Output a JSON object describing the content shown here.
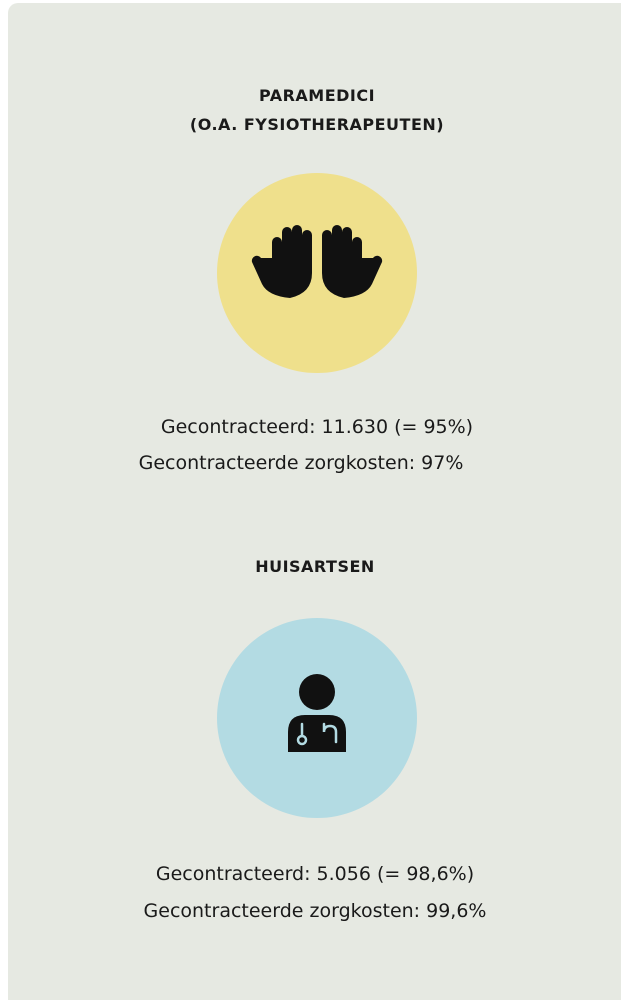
{
  "sections": [
    {
      "title": [
        "PARAMEDICI",
        "(O.A. FYSIOTHERAPEUTEN)"
      ],
      "lines": [
        "Gecontracteerd: 11.630 (= 95%)",
        "Gecontracteerde zorgkosten: 97%"
      ]
    },
    {
      "title": [
        "HUISARTSEN"
      ],
      "lines": [
        "Gecontracteerd: 5.056 (= 98,6%)",
        "Gecontracteerde zorgkosten: 99,6%"
      ]
    }
  ]
}
